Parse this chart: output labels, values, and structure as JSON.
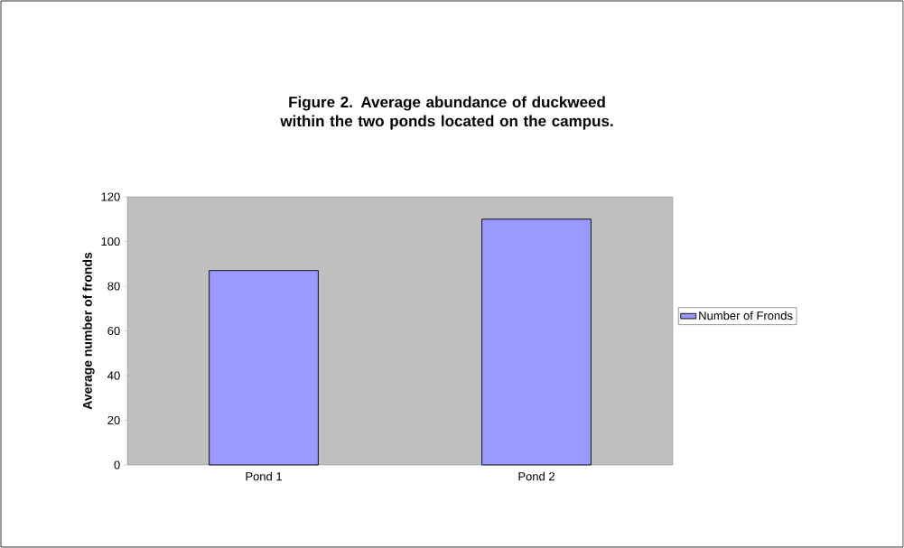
{
  "chart_data": {
    "type": "bar",
    "title": "Figure 2. Average abundance of duckweed within the two ponds located on the campus.",
    "ylabel": "Average number of fronds",
    "categories": [
      "Pond 1",
      "Pond 2"
    ],
    "series": [
      {
        "name": "Number of Fronds",
        "color": "#9999ff",
        "values": [
          87,
          110
        ]
      }
    ],
    "ylim": [
      0,
      120
    ],
    "yticks": [
      0,
      20,
      40,
      60,
      80,
      100,
      120
    ],
    "legend": "right"
  }
}
